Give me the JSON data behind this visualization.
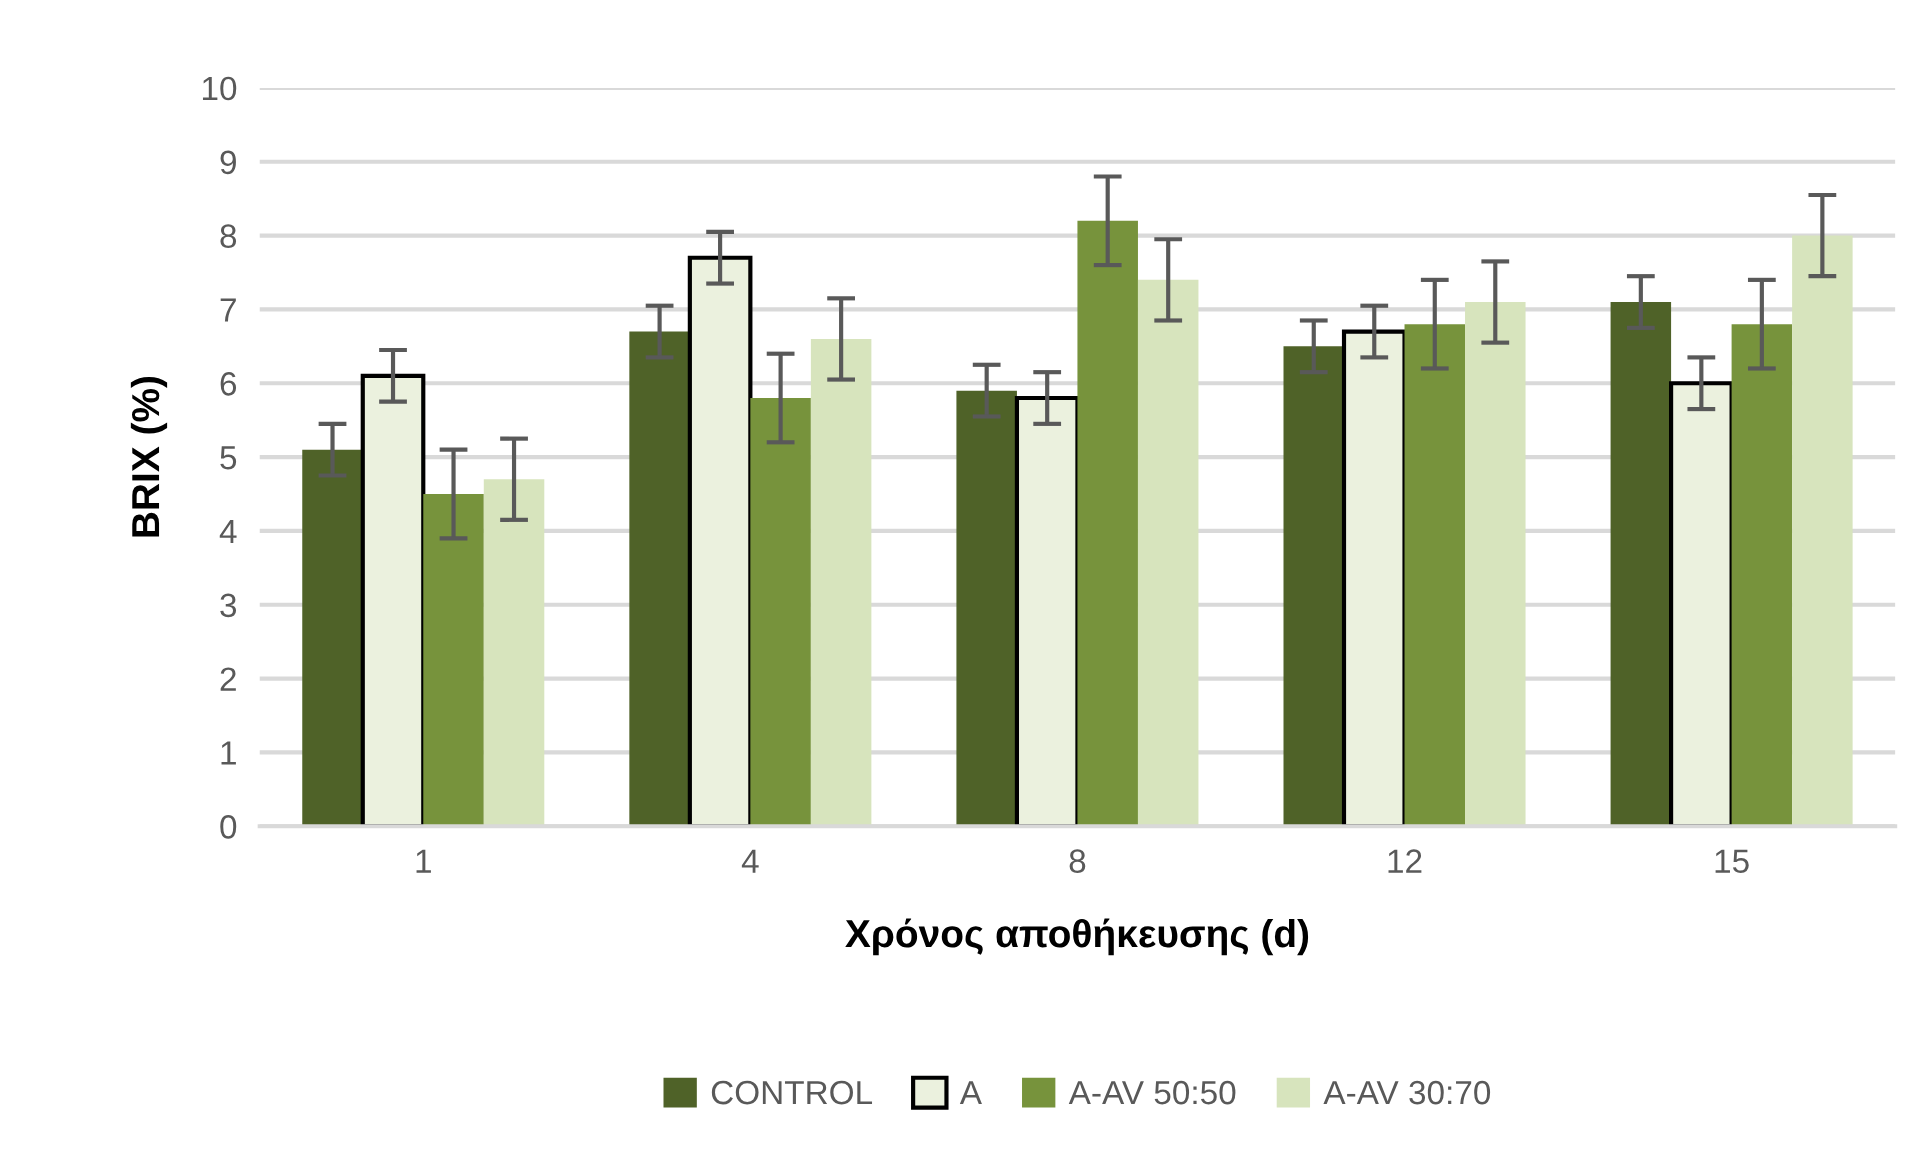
{
  "chart_data": {
    "type": "bar",
    "xlabel": "Χρόνος αποθήκευσης (d)",
    "ylabel": "BRIX (%)",
    "categories": [
      "1",
      "4",
      "8",
      "12",
      "15"
    ],
    "series": [
      {
        "name": "CONTROL",
        "color": "#4f6228",
        "values": [
          5.1,
          6.7,
          5.9,
          6.5,
          7.1
        ],
        "errors": [
          0.35,
          0.35,
          0.35,
          0.35,
          0.35
        ]
      },
      {
        "name": "A",
        "color": "#ebf1de",
        "values": [
          6.1,
          7.7,
          5.8,
          6.7,
          6.0
        ],
        "errors": [
          0.35,
          0.35,
          0.35,
          0.35,
          0.35
        ]
      },
      {
        "name": "A-AV 50:50",
        "color": "#77933c",
        "values": [
          4.5,
          5.8,
          8.2,
          6.8,
          6.8
        ],
        "errors": [
          0.6,
          0.6,
          0.6,
          0.6,
          0.6
        ]
      },
      {
        "name": "A-AV 30:70",
        "color": "#d7e4bd",
        "values": [
          4.7,
          6.6,
          7.4,
          7.1,
          8.0
        ],
        "errors": [
          0.55,
          0.55,
          0.55,
          0.55,
          0.55
        ]
      }
    ],
    "ylim": [
      0,
      10
    ],
    "yticks": [
      0,
      1,
      2,
      3,
      4,
      5,
      6,
      7,
      8,
      9,
      10
    ],
    "grid": "y",
    "legend": "bottom"
  }
}
